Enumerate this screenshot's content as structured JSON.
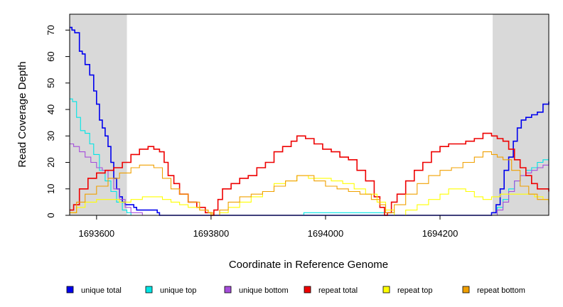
{
  "chart_data": {
    "type": "line",
    "title": "",
    "xlabel": "Coordinate in Reference Genome",
    "ylabel": "Read Coverage Depth",
    "xlim": [
      1693553,
      1694390
    ],
    "ylim": [
      0,
      76
    ],
    "x_ticks": [
      1693600,
      1693800,
      1694000,
      1694200
    ],
    "y_ticks": [
      0,
      10,
      20,
      30,
      40,
      50,
      60,
      70
    ],
    "shaded_regions": [
      [
        1693553,
        1693653
      ],
      [
        1694292,
        1694390
      ]
    ],
    "shade_color": "#d9d9d9",
    "legend_position": "bottom",
    "series": [
      {
        "name": "unique total",
        "color": "#0000ee",
        "x": [
          1693553,
          1693557,
          1693562,
          1693570,
          1693575,
          1693580,
          1693588,
          1693595,
          1693600,
          1693605,
          1693610,
          1693615,
          1693620,
          1693625,
          1693630,
          1693635,
          1693640,
          1693645,
          1693650,
          1693655,
          1693660,
          1693665,
          1693670,
          1693680,
          1693690,
          1693700,
          1693706,
          1693710,
          1693960,
          1693962,
          1694090,
          1694120,
          1694290,
          1694298,
          1694305,
          1694312,
          1694320,
          1694328,
          1694335,
          1694342,
          1694350,
          1694360,
          1694370,
          1694380,
          1694390
        ],
        "values": [
          71,
          70,
          69,
          62,
          61,
          57,
          53,
          47,
          42,
          36,
          33,
          30,
          26,
          20,
          14,
          10,
          7,
          5,
          4,
          4,
          4,
          3,
          2,
          2,
          2,
          2,
          1,
          0,
          0,
          0,
          0,
          0,
          1,
          4,
          10,
          17,
          22,
          28,
          33,
          36,
          37,
          38,
          39,
          42,
          43
        ]
      },
      {
        "name": "unique top",
        "color": "#00e5e5",
        "x": [
          1693553,
          1693558,
          1693565,
          1693572,
          1693580,
          1693588,
          1693595,
          1693605,
          1693615,
          1693625,
          1693635,
          1693645,
          1693653,
          1693660,
          1693680,
          1693700,
          1693710,
          1693960,
          1693962,
          1694090,
          1694120,
          1694290,
          1694300,
          1694310,
          1694320,
          1694330,
          1694340,
          1694350,
          1694360,
          1694370,
          1694380,
          1694390
        ],
        "values": [
          44,
          43,
          37,
          32,
          31,
          27,
          23,
          17,
          13,
          9,
          5,
          2,
          1,
          0,
          0,
          0,
          0,
          0,
          1,
          1,
          0,
          0,
          3,
          6,
          10,
          13,
          15,
          17,
          18,
          20,
          21,
          22
        ]
      },
      {
        "name": "unique bottom",
        "color": "#a64ddb",
        "x": [
          1693553,
          1693560,
          1693570,
          1693580,
          1693590,
          1693600,
          1693610,
          1693620,
          1693630,
          1693640,
          1693650,
          1693660,
          1693680,
          1693710,
          1693960,
          1694090,
          1694120,
          1694290,
          1694300,
          1694310,
          1694320,
          1694330,
          1694340,
          1694350,
          1694360,
          1694370,
          1694380,
          1694390
        ],
        "values": [
          27,
          26,
          24,
          22,
          20,
          18,
          17,
          14,
          10,
          6,
          3,
          1,
          0,
          0,
          0,
          0,
          0,
          0,
          2,
          5,
          9,
          13,
          15,
          16,
          17,
          18,
          19,
          21
        ]
      },
      {
        "name": "repeat total",
        "color": "#ee0000",
        "x": [
          1693553,
          1693560,
          1693570,
          1693585,
          1693600,
          1693615,
          1693630,
          1693645,
          1693660,
          1693675,
          1693690,
          1693700,
          1693710,
          1693718,
          1693725,
          1693735,
          1693745,
          1693760,
          1693775,
          1693790,
          1693800,
          1693805,
          1693812,
          1693820,
          1693835,
          1693850,
          1693865,
          1693880,
          1693895,
          1693910,
          1693925,
          1693940,
          1693950,
          1693965,
          1693980,
          1693995,
          1694010,
          1694025,
          1694040,
          1694055,
          1694070,
          1694085,
          1694095,
          1694103,
          1694108,
          1694115,
          1694125,
          1694140,
          1694155,
          1694170,
          1694185,
          1694200,
          1694215,
          1694230,
          1694245,
          1694260,
          1694275,
          1694290,
          1694300,
          1694310,
          1694320,
          1694330,
          1694340,
          1694350,
          1694360,
          1694370,
          1694380,
          1694390
        ],
        "values": [
          2,
          4,
          10,
          14,
          16,
          17,
          18,
          20,
          23,
          25,
          26,
          25,
          24,
          20,
          15,
          12,
          8,
          5,
          3,
          1,
          0,
          2,
          6,
          10,
          12,
          14,
          15,
          18,
          20,
          24,
          26,
          28,
          30,
          29,
          27,
          25,
          24,
          22,
          21,
          17,
          13,
          7,
          3,
          0,
          1,
          5,
          8,
          13,
          17,
          20,
          24,
          26,
          27,
          27,
          28,
          29,
          31,
          30,
          29,
          28,
          25,
          21,
          18,
          15,
          12,
          10,
          10,
          9
        ]
      },
      {
        "name": "repeat top",
        "color": "#ffff00",
        "x": [
          1693553,
          1693565,
          1693580,
          1693600,
          1693620,
          1693640,
          1693660,
          1693680,
          1693700,
          1693715,
          1693730,
          1693745,
          1693760,
          1693780,
          1693795,
          1693800,
          1693815,
          1693830,
          1693850,
          1693870,
          1693890,
          1693910,
          1693930,
          1693950,
          1693970,
          1693990,
          1694010,
          1694030,
          1694050,
          1694070,
          1694090,
          1694105,
          1694120,
          1694140,
          1694160,
          1694180,
          1694200,
          1694215,
          1694230,
          1694245,
          1694260,
          1694275,
          1694290,
          1694305,
          1694320,
          1694335,
          1694350,
          1694365,
          1694380,
          1694390
        ],
        "values": [
          1,
          3,
          5,
          6,
          6,
          5,
          6,
          7,
          7,
          6,
          5,
          4,
          3,
          2,
          1,
          0,
          1,
          3,
          5,
          7,
          9,
          12,
          13,
          15,
          14,
          14,
          13,
          12,
          10,
          8,
          5,
          2,
          0,
          2,
          4,
          6,
          8,
          10,
          10,
          9,
          7,
          6,
          7,
          8,
          8,
          8,
          8,
          7,
          6,
          5
        ]
      },
      {
        "name": "repeat bottom",
        "color": "#f0a000",
        "x": [
          1693553,
          1693565,
          1693580,
          1693600,
          1693620,
          1693640,
          1693660,
          1693675,
          1693690,
          1693700,
          1693715,
          1693730,
          1693745,
          1693760,
          1693780,
          1693795,
          1693803,
          1693815,
          1693830,
          1693850,
          1693870,
          1693890,
          1693910,
          1693930,
          1693950,
          1693965,
          1693980,
          1694000,
          1694020,
          1694040,
          1694060,
          1694080,
          1694095,
          1694105,
          1694120,
          1694140,
          1694160,
          1694180,
          1694200,
          1694220,
          1694240,
          1694260,
          1694275,
          1694290,
          1694300,
          1694310,
          1694325,
          1694340,
          1694355,
          1694370,
          1694390
        ],
        "values": [
          1,
          5,
          8,
          11,
          14,
          16,
          18,
          19,
          19,
          18,
          14,
          10,
          8,
          5,
          2,
          1,
          0,
          2,
          5,
          7,
          8,
          9,
          11,
          13,
          15,
          15,
          13,
          11,
          10,
          9,
          8,
          6,
          4,
          1,
          4,
          8,
          12,
          15,
          17,
          18,
          20,
          22,
          24,
          23,
          22,
          21,
          17,
          11,
          8,
          6,
          4
        ]
      }
    ]
  }
}
